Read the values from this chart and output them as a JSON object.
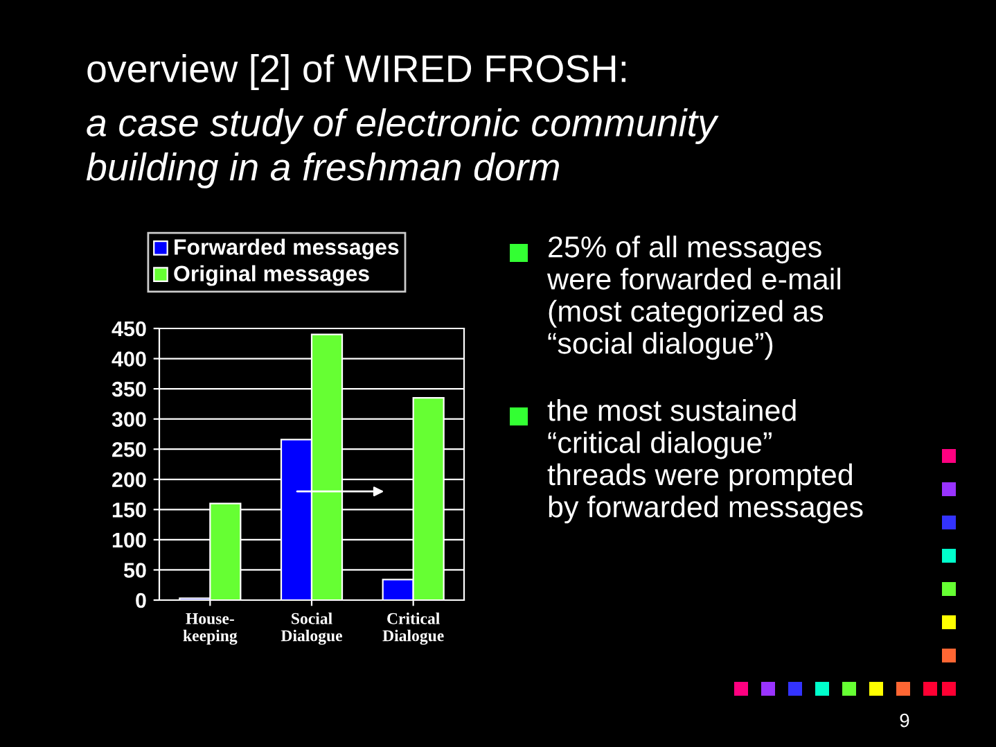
{
  "chart_data": {
    "type": "bar",
    "title": "overview [2] of WIRED FROSH:",
    "subtitle": "a case study of electronic community\nbuilding in a freshman dorm",
    "categories": [
      "House-\nkeeping",
      "Social\nDialogue",
      "Critical\nDialogue"
    ],
    "series": [
      {
        "name": "Forwarded messages",
        "color": "#0000ff",
        "values": [
          3,
          266,
          34
        ]
      },
      {
        "name": "Original messages",
        "color": "#66ff33",
        "values": [
          160,
          440,
          335
        ]
      }
    ],
    "ylim": [
      0,
      450
    ],
    "yticks": [
      0,
      50,
      100,
      150,
      200,
      250,
      300,
      350,
      400,
      450
    ],
    "grid": "y",
    "legend": "top",
    "annotations": [
      "25% of all messages\nwere forwarded e-mail\n(most categorized as\n“social dialogue”)",
      "the most sustained\n“critical dialogue”\nthreads were prompted\nby forwarded messages",
      "9"
    ]
  }
}
